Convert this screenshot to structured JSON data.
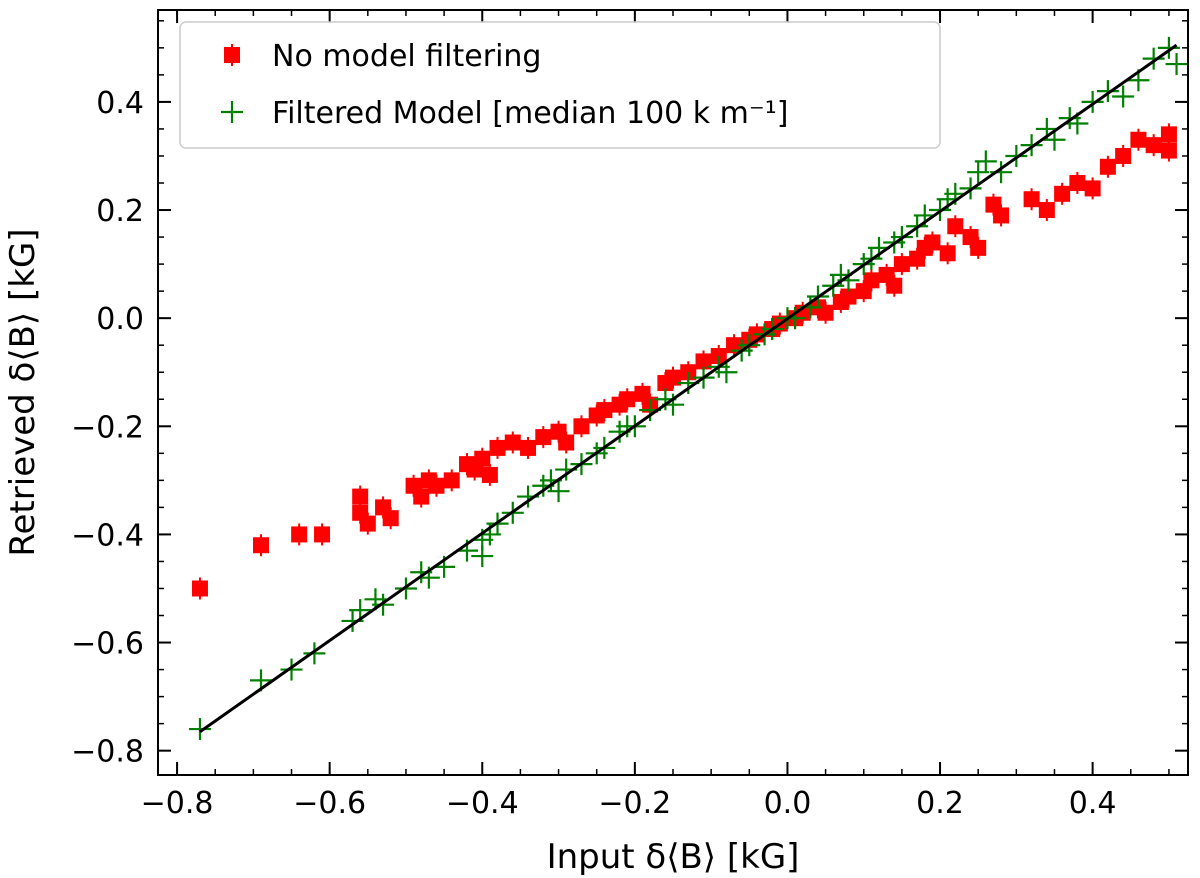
{
  "chart_data": {
    "type": "scatter",
    "xlabel": "Input δ⟨B⟩ [kG]",
    "ylabel": "Retrieved δ⟨B⟩ [kG]",
    "xlim": [
      -0.825,
      0.525
    ],
    "ylim": [
      -0.845,
      0.57
    ],
    "xticks": [
      -0.8,
      -0.6,
      -0.4,
      -0.2,
      0.0,
      0.2,
      0.4
    ],
    "yticks": [
      -0.8,
      -0.6,
      -0.4,
      -0.2,
      0.0,
      0.2,
      0.4
    ],
    "xtick_labels": [
      "−0.8",
      "−0.6",
      "−0.4",
      "−0.2",
      "0.0",
      "0.2",
      "0.4"
    ],
    "ytick_labels": [
      "−0.8",
      "−0.6",
      "−0.4",
      "−0.2",
      "0.0",
      "0.2",
      "0.4"
    ],
    "grid": false,
    "legend_position": "top-left",
    "reference_line": {
      "name": "one-to-one",
      "color": "#000000",
      "x": [
        -0.77,
        0.51
      ],
      "y": [
        -0.765,
        0.505
      ]
    },
    "series": [
      {
        "name": "No model filtering",
        "marker": "square-errorbar",
        "color": "#ff0000",
        "x": [
          -0.77,
          -0.69,
          -0.64,
          -0.61,
          -0.56,
          -0.56,
          -0.55,
          -0.53,
          -0.52,
          -0.49,
          -0.48,
          -0.47,
          -0.46,
          -0.44,
          -0.42,
          -0.41,
          -0.4,
          -0.39,
          -0.38,
          -0.36,
          -0.34,
          -0.32,
          -0.3,
          -0.29,
          -0.27,
          -0.25,
          -0.24,
          -0.22,
          -0.21,
          -0.19,
          -0.18,
          -0.16,
          -0.15,
          -0.13,
          -0.11,
          -0.09,
          -0.07,
          -0.05,
          -0.04,
          -0.02,
          -0.01,
          0.01,
          0.02,
          0.04,
          0.05,
          0.07,
          0.08,
          0.1,
          0.11,
          0.13,
          0.14,
          0.15,
          0.17,
          0.18,
          0.19,
          0.21,
          0.22,
          0.24,
          0.25,
          0.27,
          0.28,
          0.32,
          0.34,
          0.36,
          0.38,
          0.4,
          0.42,
          0.44,
          0.46,
          0.48,
          0.5,
          0.5
        ],
        "y": [
          -0.5,
          -0.42,
          -0.4,
          -0.4,
          -0.36,
          -0.33,
          -0.38,
          -0.35,
          -0.37,
          -0.31,
          -0.33,
          -0.3,
          -0.31,
          -0.3,
          -0.27,
          -0.28,
          -0.26,
          -0.29,
          -0.24,
          -0.23,
          -0.24,
          -0.22,
          -0.21,
          -0.23,
          -0.2,
          -0.18,
          -0.17,
          -0.16,
          -0.15,
          -0.14,
          -0.16,
          -0.12,
          -0.11,
          -0.1,
          -0.08,
          -0.07,
          -0.05,
          -0.04,
          -0.03,
          -0.02,
          -0.01,
          0.0,
          0.01,
          0.02,
          0.01,
          0.03,
          0.04,
          0.05,
          0.07,
          0.08,
          0.06,
          0.1,
          0.11,
          0.13,
          0.14,
          0.12,
          0.17,
          0.15,
          0.13,
          0.21,
          0.19,
          0.22,
          0.2,
          0.23,
          0.25,
          0.24,
          0.28,
          0.3,
          0.33,
          0.32,
          0.34,
          0.31
        ]
      },
      {
        "name": "Filtered Model [median 100 k m⁻¹]",
        "marker": "plus",
        "color": "#008000",
        "x": [
          -0.77,
          -0.69,
          -0.65,
          -0.62,
          -0.57,
          -0.56,
          -0.54,
          -0.53,
          -0.5,
          -0.48,
          -0.47,
          -0.45,
          -0.42,
          -0.4,
          -0.4,
          -0.39,
          -0.38,
          -0.36,
          -0.34,
          -0.32,
          -0.31,
          -0.3,
          -0.29,
          -0.27,
          -0.25,
          -0.24,
          -0.22,
          -0.21,
          -0.2,
          -0.18,
          -0.16,
          -0.15,
          -0.13,
          -0.11,
          -0.09,
          -0.08,
          -0.06,
          -0.05,
          -0.03,
          -0.02,
          0.0,
          0.01,
          0.03,
          0.04,
          0.06,
          0.07,
          0.08,
          0.1,
          0.11,
          0.12,
          0.14,
          0.15,
          0.17,
          0.18,
          0.2,
          0.21,
          0.22,
          0.24,
          0.25,
          0.26,
          0.28,
          0.3,
          0.32,
          0.34,
          0.35,
          0.37,
          0.38,
          0.4,
          0.42,
          0.44,
          0.46,
          0.48,
          0.5,
          0.51
        ],
        "y": [
          -0.76,
          -0.67,
          -0.65,
          -0.62,
          -0.56,
          -0.54,
          -0.52,
          -0.53,
          -0.5,
          -0.47,
          -0.48,
          -0.46,
          -0.43,
          -0.44,
          -0.41,
          -0.4,
          -0.38,
          -0.36,
          -0.33,
          -0.31,
          -0.3,
          -0.32,
          -0.28,
          -0.27,
          -0.25,
          -0.24,
          -0.21,
          -0.2,
          -0.2,
          -0.17,
          -0.15,
          -0.16,
          -0.12,
          -0.11,
          -0.09,
          -0.1,
          -0.06,
          -0.05,
          -0.03,
          -0.02,
          0.0,
          0.0,
          0.02,
          0.04,
          0.06,
          0.08,
          0.07,
          0.1,
          0.11,
          0.13,
          0.14,
          0.15,
          0.17,
          0.19,
          0.2,
          0.22,
          0.23,
          0.24,
          0.27,
          0.29,
          0.27,
          0.3,
          0.32,
          0.35,
          0.33,
          0.37,
          0.36,
          0.4,
          0.42,
          0.41,
          0.44,
          0.48,
          0.5,
          0.47
        ]
      }
    ]
  }
}
